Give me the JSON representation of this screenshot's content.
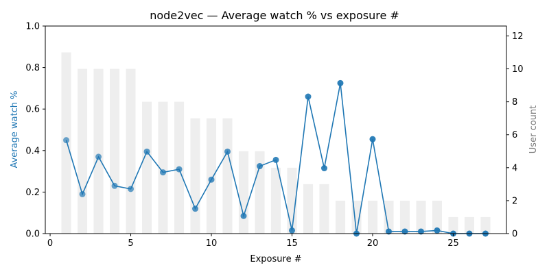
{
  "chart_data": {
    "type": "line",
    "title": "node2vec — Average watch % vs exposure #",
    "xlabel": "Exposure #",
    "ylabel": "Average watch %",
    "y2label": "User count",
    "xlim": [
      -0.3,
      28.3
    ],
    "ylim": [
      0,
      1.0
    ],
    "y2lim": [
      0,
      12.6
    ],
    "xticks": [
      0,
      5,
      10,
      15,
      20,
      25
    ],
    "yticks": [
      0.0,
      0.2,
      0.4,
      0.6,
      0.8,
      1.0
    ],
    "y2ticks": [
      0,
      2,
      4,
      6,
      8,
      10,
      12
    ],
    "grid": false,
    "colors": {
      "line": "#1f77b4",
      "bars": "#eeeeee",
      "secondary_axis": "#808080"
    },
    "x": [
      1,
      2,
      3,
      4,
      5,
      6,
      7,
      8,
      9,
      10,
      11,
      12,
      13,
      14,
      15,
      16,
      17,
      18,
      19,
      20,
      21,
      22,
      23,
      24,
      25,
      26,
      27
    ],
    "series": [
      {
        "axis": "left",
        "kind": "line",
        "values": [
          0.45,
          0.19,
          0.37,
          0.23,
          0.215,
          0.395,
          0.295,
          0.31,
          0.12,
          0.26,
          0.395,
          0.085,
          0.325,
          0.355,
          0.015,
          0.66,
          0.315,
          0.725,
          0.0,
          0.455,
          0.01,
          0.01,
          0.01,
          0.015,
          0.0,
          0.0,
          0.0
        ]
      },
      {
        "axis": "right",
        "kind": "bar",
        "values": [
          11,
          10,
          10,
          10,
          10,
          8,
          8,
          8,
          7,
          7,
          7,
          5,
          5,
          4,
          4,
          3,
          3,
          2,
          2,
          2,
          2,
          2,
          2,
          2,
          1,
          1,
          1
        ]
      }
    ]
  }
}
